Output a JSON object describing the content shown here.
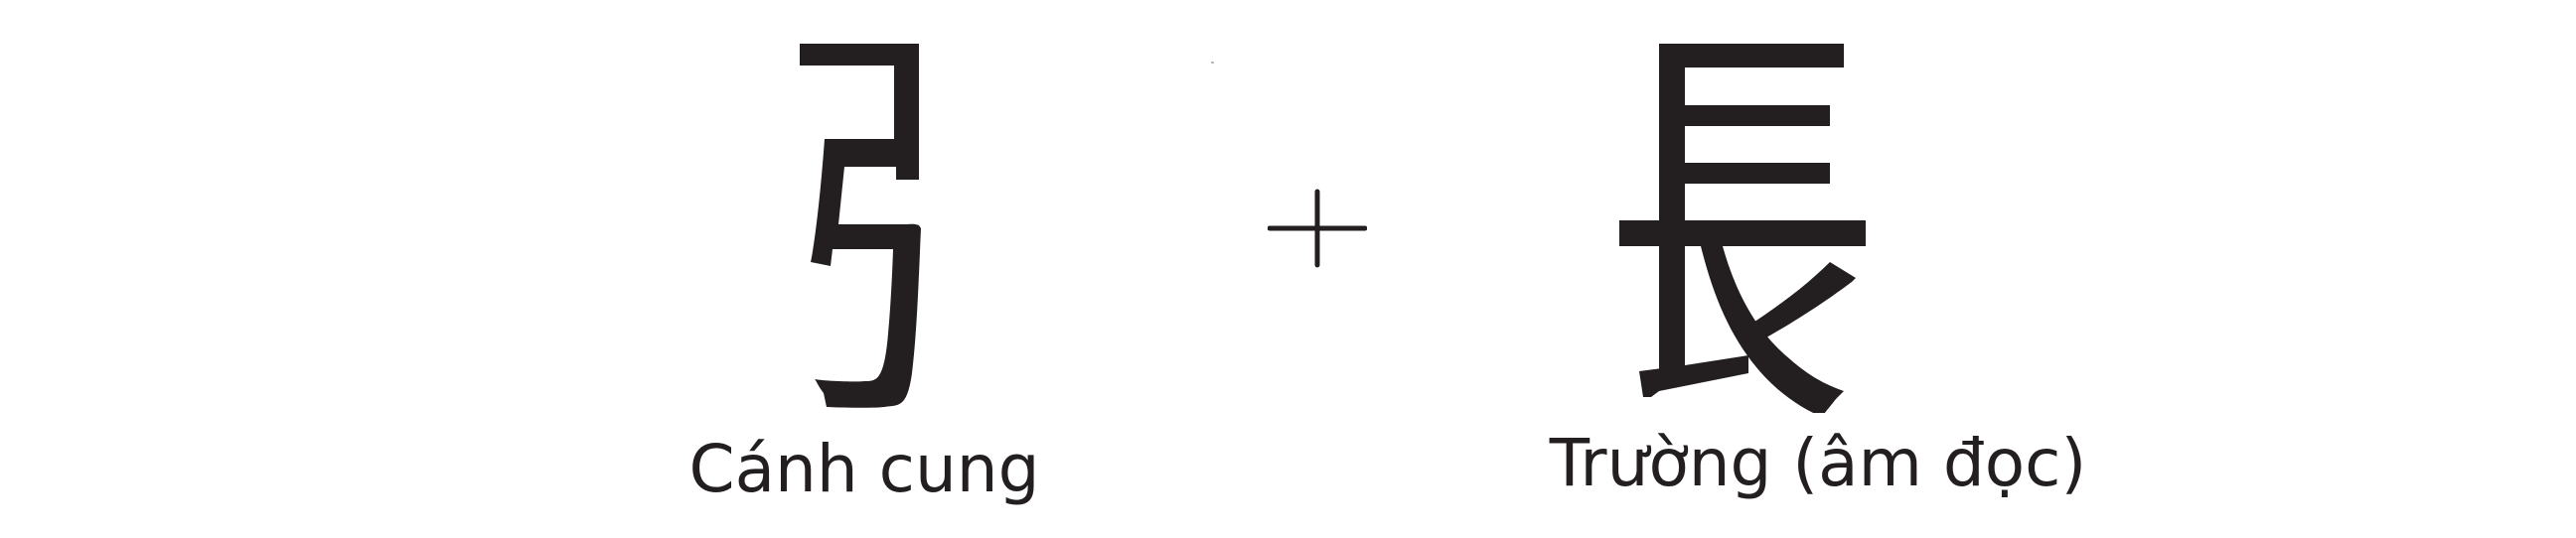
{
  "components": [
    {
      "character": "弓",
      "caption": "Cánh cung"
    },
    {
      "character": "長",
      "caption": "Trường (âm đọc)"
    }
  ],
  "operator": "+",
  "colors": {
    "ink": "#231f20",
    "background": "#ffffff"
  }
}
